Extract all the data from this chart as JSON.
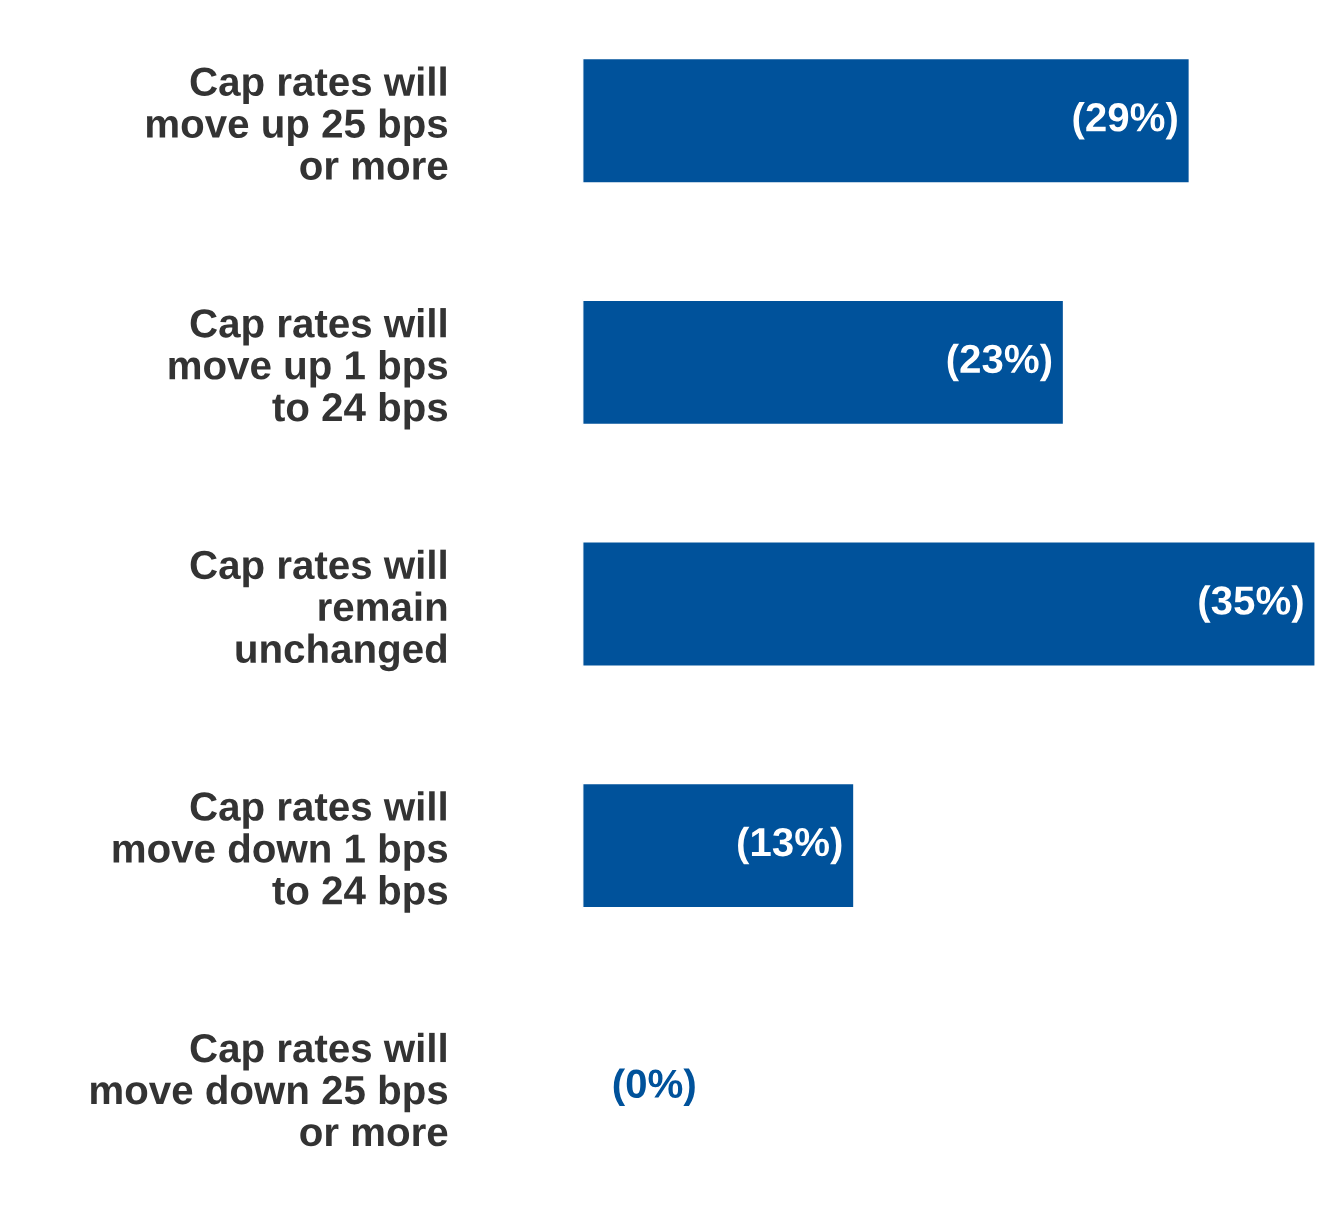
{
  "chart_data": {
    "type": "bar",
    "orientation": "horizontal",
    "categories": [
      "Cap rates will\nmove up 25 bps\nor more",
      "Cap rates will\nmove up 1 bps\nto 24 bps",
      "Cap rates will\nremain\nunchanged",
      "Cap rates will\nmove down 1 bps\nto 24 bps",
      "Cap rates will\nmove down 25 bps\nor more"
    ],
    "values": [
      29,
      23,
      35,
      13,
      0
    ],
    "value_labels": [
      "(29%)",
      "(23%)",
      "(35%)",
      "(13%)",
      "(0%)"
    ],
    "color": "#00529b",
    "tick_labels": "y",
    "grid": false,
    "legend": false
  }
}
